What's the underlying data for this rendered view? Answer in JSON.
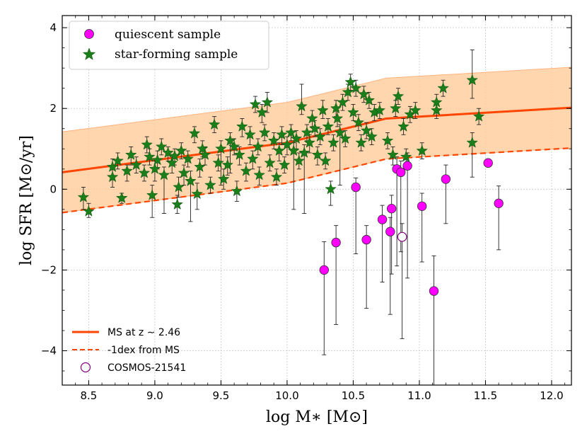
{
  "chart_data": {
    "type": "scatter",
    "xlabel": "log M∗ [M⊙]",
    "ylabel": "log SFR [M⊙/yr]",
    "xlim": [
      8.3,
      12.15
    ],
    "ylim": [
      -4.85,
      4.3
    ],
    "xticks": [
      "8.5",
      "9.0",
      "9.5",
      "10.0",
      "10.5",
      "11.0",
      "11.5",
      "12.0"
    ],
    "yticks": [
      "−4",
      "−2",
      "0",
      "2",
      "4"
    ],
    "grid": true,
    "colors": {
      "quiescent": "#ff00ff",
      "star_forming": "#1a7f1a",
      "ms_line": "#ff4500",
      "ms_band": "#ffcc99",
      "cosmos": "#800080"
    },
    "legend_top": {
      "placement": "top-left",
      "entries": [
        {
          "label": "quiescent sample",
          "marker": "circle"
        },
        {
          "label": "star-forming sample",
          "marker": "star"
        }
      ]
    },
    "legend_bottom": {
      "placement": "lower-left",
      "entries": [
        {
          "label": "MS at z ∼ 2.46",
          "style": "solid"
        },
        {
          "label": "-1dex from MS",
          "style": "dashed"
        },
        {
          "label": "COSMOS-21541",
          "style": "open-circle"
        }
      ]
    },
    "ms_line": {
      "name": "MS at z ~ 2.46",
      "x": [
        8.3,
        10.0,
        10.75,
        12.15
      ],
      "y": [
        0.42,
        1.15,
        1.75,
        2.02
      ]
    },
    "ms_minus1": {
      "name": "-1dex from MS",
      "x": [
        8.3,
        10.0,
        10.75,
        12.15
      ],
      "y": [
        -0.58,
        0.15,
        0.75,
        1.02
      ]
    },
    "ms_band": {
      "x": [
        8.3,
        10.0,
        10.75,
        12.15
      ],
      "upper": [
        1.42,
        2.15,
        2.75,
        3.02
      ],
      "lower": [
        -0.58,
        0.15,
        0.75,
        1.02
      ]
    },
    "quiescent": [
      {
        "x": 10.28,
        "y": -2.0,
        "lo": -4.1,
        "hi": -1.3
      },
      {
        "x": 10.37,
        "y": -1.32,
        "lo": -3.35,
        "hi": -0.9
      },
      {
        "x": 10.52,
        "y": 0.05,
        "lo": -1.6,
        "hi": 0.28
      },
      {
        "x": 10.6,
        "y": -1.25,
        "lo": -2.95,
        "hi": -0.9
      },
      {
        "x": 10.72,
        "y": -0.75,
        "lo": -2.3,
        "hi": -0.4
      },
      {
        "x": 10.78,
        "y": -1.05,
        "lo": -3.1,
        "hi": -0.7
      },
      {
        "x": 10.79,
        "y": -0.48,
        "lo": -2.1,
        "hi": -0.15
      },
      {
        "x": 10.83,
        "y": 0.5,
        "lo": -1.9,
        "hi": 0.8
      },
      {
        "x": 10.86,
        "y": 0.42,
        "lo": -1.55,
        "hi": 0.7
      },
      {
        "x": 10.91,
        "y": 0.58,
        "lo": -2.2,
        "hi": 0.9
      },
      {
        "x": 11.02,
        "y": -0.42,
        "lo": -1.8,
        "hi": -0.1
      },
      {
        "x": 11.11,
        "y": -2.52,
        "lo": -4.85,
        "hi": -1.65
      },
      {
        "x": 11.2,
        "y": 0.25,
        "lo": -0.85,
        "hi": 0.6
      },
      {
        "x": 11.52,
        "y": 0.65,
        "lo": 0.65,
        "hi": 0.65
      },
      {
        "x": 11.6,
        "y": -0.35,
        "lo": -1.5,
        "hi": 0.08
      }
    ],
    "cosmos_21541": {
      "x": 10.87,
      "y": -1.18,
      "lo": -3.7,
      "hi": -0.85
    },
    "star_forming": [
      {
        "x": 8.46,
        "y": -0.2,
        "lo": -0.5,
        "hi": 0.05
      },
      {
        "x": 8.5,
        "y": -0.55,
        "lo": -0.7,
        "hi": -0.35
      },
      {
        "x": 8.68,
        "y": 0.55,
        "lo": 0.3,
        "hi": 0.75
      },
      {
        "x": 8.68,
        "y": 0.3,
        "lo": 0.05,
        "hi": 0.5
      },
      {
        "x": 8.72,
        "y": 0.7,
        "lo": 0.5,
        "hi": 0.9
      },
      {
        "x": 8.75,
        "y": -0.22,
        "lo": -0.35,
        "hi": -0.1
      },
      {
        "x": 8.79,
        "y": 0.45,
        "lo": 0.2,
        "hi": 0.6
      },
      {
        "x": 8.82,
        "y": 0.85,
        "lo": 0.6,
        "hi": 1.05
      },
      {
        "x": 8.86,
        "y": 0.6,
        "lo": 0.4,
        "hi": 0.8
      },
      {
        "x": 8.92,
        "y": 0.4,
        "lo": 0.2,
        "hi": 0.6
      },
      {
        "x": 8.94,
        "y": 1.1,
        "lo": 0.9,
        "hi": 1.3
      },
      {
        "x": 8.96,
        "y": 0.8,
        "lo": 0.6,
        "hi": 1.0
      },
      {
        "x": 8.98,
        "y": -0.15,
        "lo": -0.7,
        "hi": 0.1
      },
      {
        "x": 9.0,
        "y": 0.5,
        "lo": 0.2,
        "hi": 0.7
      },
      {
        "x": 9.02,
        "y": 0.72,
        "lo": 0.5,
        "hi": 0.95
      },
      {
        "x": 9.05,
        "y": 1.05,
        "lo": 0.85,
        "hi": 1.25
      },
      {
        "x": 9.07,
        "y": 0.35,
        "lo": -0.6,
        "hi": 0.55
      },
      {
        "x": 9.1,
        "y": 0.9,
        "lo": 0.7,
        "hi": 1.05
      },
      {
        "x": 9.13,
        "y": 0.65,
        "lo": 0.4,
        "hi": 0.85
      },
      {
        "x": 9.15,
        "y": 0.82,
        "lo": 0.6,
        "hi": 1.0
      },
      {
        "x": 9.17,
        "y": -0.38,
        "lo": -0.6,
        "hi": -0.15
      },
      {
        "x": 9.18,
        "y": 0.05,
        "lo": -0.2,
        "hi": 0.3
      },
      {
        "x": 9.2,
        "y": 0.95,
        "lo": 0.75,
        "hi": 1.15
      },
      {
        "x": 9.22,
        "y": 0.4,
        "lo": 0.1,
        "hi": 0.6
      },
      {
        "x": 9.25,
        "y": 0.75,
        "lo": 0.55,
        "hi": 0.95
      },
      {
        "x": 9.27,
        "y": 0.2,
        "lo": -0.8,
        "hi": 0.45
      },
      {
        "x": 9.3,
        "y": 1.38,
        "lo": 1.15,
        "hi": 1.55
      },
      {
        "x": 9.32,
        "y": -0.12,
        "lo": -0.5,
        "hi": 0.15
      },
      {
        "x": 9.34,
        "y": 0.55,
        "lo": 0.3,
        "hi": 0.75
      },
      {
        "x": 9.36,
        "y": 1.0,
        "lo": 0.8,
        "hi": 1.2
      },
      {
        "x": 9.38,
        "y": 0.85,
        "lo": 0.6,
        "hi": 1.05
      },
      {
        "x": 9.42,
        "y": 0.1,
        "lo": -0.1,
        "hi": 0.3
      },
      {
        "x": 9.45,
        "y": 1.6,
        "lo": 1.4,
        "hi": 1.8
      },
      {
        "x": 9.48,
        "y": 0.65,
        "lo": 0.45,
        "hi": 0.85
      },
      {
        "x": 9.5,
        "y": 1.0,
        "lo": 0.1,
        "hi": 1.2
      },
      {
        "x": 9.52,
        "y": 0.25,
        "lo": 0.0,
        "hi": 0.5
      },
      {
        "x": 9.55,
        "y": 0.6,
        "lo": 0.35,
        "hi": 0.8
      },
      {
        "x": 9.57,
        "y": 1.2,
        "lo": 0.4,
        "hi": 1.4
      },
      {
        "x": 9.6,
        "y": 1.05,
        "lo": 0.85,
        "hi": 1.25
      },
      {
        "x": 9.62,
        "y": -0.05,
        "lo": -0.3,
        "hi": 0.2
      },
      {
        "x": 9.64,
        "y": 0.85,
        "lo": 0.6,
        "hi": 1.05
      },
      {
        "x": 9.66,
        "y": 1.55,
        "lo": 1.3,
        "hi": 1.75
      },
      {
        "x": 9.69,
        "y": 0.45,
        "lo": 0.2,
        "hi": 0.65
      },
      {
        "x": 9.72,
        "y": 1.35,
        "lo": 1.1,
        "hi": 1.55
      },
      {
        "x": 9.74,
        "y": 0.75,
        "lo": 0.5,
        "hi": 0.95
      },
      {
        "x": 9.76,
        "y": 2.1,
        "lo": 1.9,
        "hi": 2.3
      },
      {
        "x": 9.78,
        "y": 1.05,
        "lo": 0.85,
        "hi": 1.25
      },
      {
        "x": 9.79,
        "y": 0.35,
        "lo": 0.1,
        "hi": 0.55
      },
      {
        "x": 9.81,
        "y": 1.9,
        "lo": 1.65,
        "hi": 2.1
      },
      {
        "x": 9.83,
        "y": 1.4,
        "lo": 1.2,
        "hi": 1.6
      },
      {
        "x": 9.85,
        "y": 2.15,
        "lo": 1.9,
        "hi": 2.4
      },
      {
        "x": 9.87,
        "y": 0.65,
        "lo": 0.45,
        "hi": 0.85
      },
      {
        "x": 9.9,
        "y": 1.2,
        "lo": 1.0,
        "hi": 1.4
      },
      {
        "x": 9.92,
        "y": 0.3,
        "lo": 0.1,
        "hi": 0.5
      },
      {
        "x": 9.94,
        "y": 0.95,
        "lo": 0.7,
        "hi": 1.15
      },
      {
        "x": 9.96,
        "y": 1.35,
        "lo": 1.1,
        "hi": 1.55
      },
      {
        "x": 9.98,
        "y": 0.6,
        "lo": 0.4,
        "hi": 0.8
      },
      {
        "x": 10.0,
        "y": 1.1,
        "lo": 0.85,
        "hi": 1.3
      },
      {
        "x": 10.03,
        "y": 1.4,
        "lo": 1.2,
        "hi": 1.6
      },
      {
        "x": 10.05,
        "y": 0.95,
        "lo": -0.5,
        "hi": 1.15
      },
      {
        "x": 10.07,
        "y": 1.25,
        "lo": 1.0,
        "hi": 1.45
      },
      {
        "x": 10.09,
        "y": 0.7,
        "lo": 0.5,
        "hi": 0.9
      },
      {
        "x": 10.11,
        "y": 2.05,
        "lo": 1.85,
        "hi": 2.6
      },
      {
        "x": 10.13,
        "y": 0.9,
        "lo": -0.6,
        "hi": 1.1
      },
      {
        "x": 10.15,
        "y": 1.4,
        "lo": 1.2,
        "hi": 1.6
      },
      {
        "x": 10.17,
        "y": 1.15,
        "lo": 0.9,
        "hi": 1.35
      },
      {
        "x": 10.19,
        "y": 1.75,
        "lo": 1.55,
        "hi": 1.95
      },
      {
        "x": 10.21,
        "y": 1.5,
        "lo": 1.3,
        "hi": 1.7
      },
      {
        "x": 10.23,
        "y": 0.85,
        "lo": 0.6,
        "hi": 1.05
      },
      {
        "x": 10.25,
        "y": 1.3,
        "lo": 1.1,
        "hi": 1.5
      },
      {
        "x": 10.27,
        "y": 1.95,
        "lo": 1.75,
        "hi": 2.2
      },
      {
        "x": 10.29,
        "y": 0.7,
        "lo": 0.5,
        "hi": 0.9
      },
      {
        "x": 10.31,
        "y": 1.55,
        "lo": 1.35,
        "hi": 1.75
      },
      {
        "x": 10.33,
        "y": 0.0,
        "lo": -0.4,
        "hi": 0.2
      },
      {
        "x": 10.35,
        "y": 1.15,
        "lo": 0.95,
        "hi": 1.35
      },
      {
        "x": 10.37,
        "y": 2.0,
        "lo": 1.8,
        "hi": 2.2
      },
      {
        "x": 10.38,
        "y": 1.75,
        "lo": 1.55,
        "hi": 1.95
      },
      {
        "x": 10.4,
        "y": 1.4,
        "lo": 0.1,
        "hi": 1.6
      },
      {
        "x": 10.42,
        "y": 2.15,
        "lo": 1.95,
        "hi": 2.35
      },
      {
        "x": 10.44,
        "y": 1.25,
        "lo": 1.05,
        "hi": 1.45
      },
      {
        "x": 10.46,
        "y": 2.4,
        "lo": 2.2,
        "hi": 2.6
      },
      {
        "x": 10.48,
        "y": 2.65,
        "lo": 2.45,
        "hi": 2.85
      },
      {
        "x": 10.5,
        "y": 1.9,
        "lo": 1.7,
        "hi": 2.1
      },
      {
        "x": 10.52,
        "y": 2.5,
        "lo": 2.3,
        "hi": 2.7
      },
      {
        "x": 10.54,
        "y": 1.65,
        "lo": 1.45,
        "hi": 1.85
      },
      {
        "x": 10.56,
        "y": 1.15,
        "lo": 0.95,
        "hi": 1.35
      },
      {
        "x": 10.58,
        "y": 2.35,
        "lo": 2.15,
        "hi": 2.55
      },
      {
        "x": 10.6,
        "y": 1.45,
        "lo": 1.25,
        "hi": 1.65
      },
      {
        "x": 10.62,
        "y": 2.2,
        "lo": 2.0,
        "hi": 2.4
      },
      {
        "x": 10.64,
        "y": 1.3,
        "lo": 1.1,
        "hi": 1.5
      },
      {
        "x": 10.66,
        "y": 1.9,
        "lo": 1.7,
        "hi": 2.1
      },
      {
        "x": 10.7,
        "y": 1.95,
        "lo": 1.75,
        "hi": 2.15
      },
      {
        "x": 10.76,
        "y": 1.2,
        "lo": 1.0,
        "hi": 1.4
      },
      {
        "x": 10.8,
        "y": 0.85,
        "lo": 0.6,
        "hi": 1.05
      },
      {
        "x": 10.82,
        "y": 2.0,
        "lo": 1.8,
        "hi": 2.2
      },
      {
        "x": 10.84,
        "y": 2.3,
        "lo": 2.1,
        "hi": 2.5
      },
      {
        "x": 10.88,
        "y": 1.55,
        "lo": 1.35,
        "hi": 1.75
      },
      {
        "x": 10.9,
        "y": 0.8,
        "lo": 0.6,
        "hi": 1.0
      },
      {
        "x": 10.93,
        "y": 1.85,
        "lo": 1.65,
        "hi": 2.05
      },
      {
        "x": 10.97,
        "y": 1.95,
        "lo": 1.75,
        "hi": 2.15
      },
      {
        "x": 11.02,
        "y": 0.95,
        "lo": 0.75,
        "hi": 1.15
      },
      {
        "x": 11.13,
        "y": 2.15,
        "lo": 1.95,
        "hi": 2.35
      },
      {
        "x": 11.13,
        "y": 1.95,
        "lo": 1.75,
        "hi": 2.15
      },
      {
        "x": 11.18,
        "y": 2.5,
        "lo": 2.3,
        "hi": 2.7
      },
      {
        "x": 11.4,
        "y": 2.7,
        "lo": 2.25,
        "hi": 3.45
      },
      {
        "x": 11.4,
        "y": 1.15,
        "lo": 0.3,
        "hi": 1.4
      },
      {
        "x": 11.45,
        "y": 1.8,
        "lo": 1.6,
        "hi": 2.0
      }
    ]
  }
}
